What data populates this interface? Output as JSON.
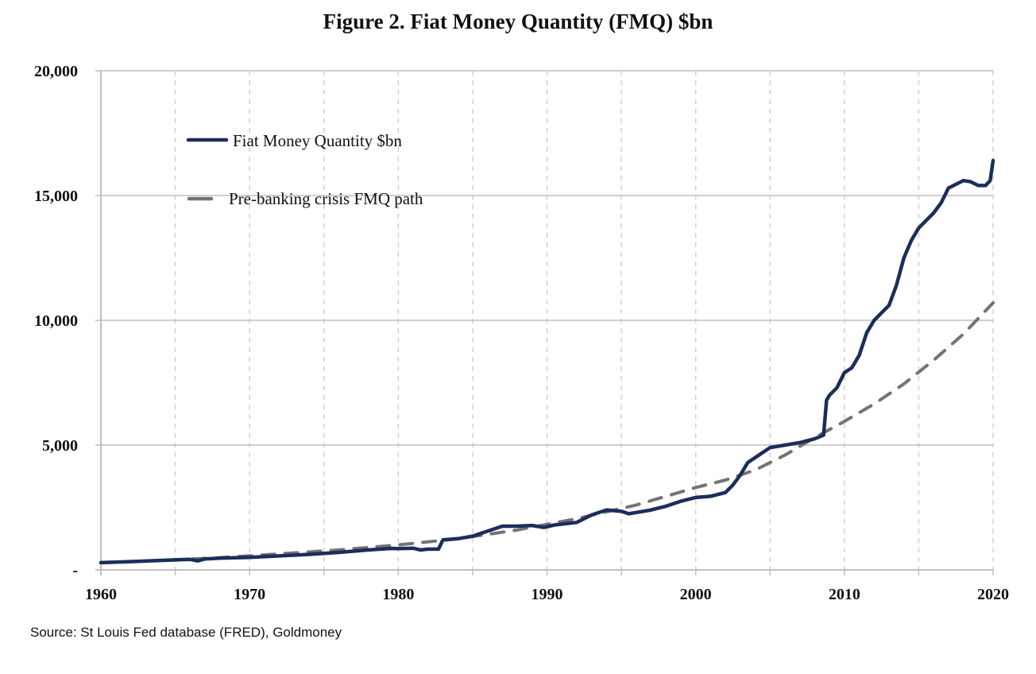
{
  "chart_data": {
    "type": "line",
    "title": "Figure 2. Fiat Money Quantity (FMQ)  $bn",
    "xlabel": "",
    "ylabel": "",
    "xlim": [
      1960,
      2020
    ],
    "ylim": [
      0,
      20000
    ],
    "x_ticks": [
      1960,
      1970,
      1980,
      1990,
      2000,
      2010,
      2020
    ],
    "x_tick_labels": [
      "1960",
      "1970",
      "1980",
      "1990",
      "2000",
      "2010",
      "2020"
    ],
    "x_minor_gridlines": [
      1965,
      1975,
      1985,
      1995,
      2005,
      2015
    ],
    "y_ticks": [
      0,
      5000,
      10000,
      15000,
      20000
    ],
    "y_tick_labels": [
      "-",
      "5,000",
      "10,000",
      "15,000",
      "20,000"
    ],
    "grid": true,
    "legend_position": "top-left",
    "source": "Source: St Louis Fed  database (FRED), Goldmoney",
    "series": [
      {
        "name": "Fiat Money Quantity $bn",
        "style": "solid",
        "color": "#1c2d5a",
        "x": [
          1960,
          1962,
          1964,
          1966,
          1966.5,
          1967,
          1968,
          1970,
          1972,
          1974,
          1976,
          1978,
          1979.5,
          1980,
          1981,
          1981.5,
          1982,
          1982.7,
          1983,
          1984,
          1985,
          1986,
          1987,
          1988,
          1989,
          1989.8,
          1990.5,
          1992,
          1993,
          1994,
          1995,
          1995.5,
          1996,
          1997,
          1998,
          1999,
          2000,
          2001,
          2002,
          2002.5,
          2003,
          2003.5,
          2004,
          2005,
          2006,
          2007,
          2008,
          2008.6,
          2008.8,
          2009,
          2009.5,
          2010,
          2010.5,
          2011,
          2011.5,
          2012,
          2012.5,
          2013,
          2013.5,
          2014,
          2014.5,
          2015,
          2015.5,
          2016,
          2016.5,
          2017,
          2017.5,
          2018,
          2018.5,
          2019,
          2019.5,
          2019.8,
          2020
        ],
        "values": [
          290,
          330,
          380,
          420,
          360,
          440,
          470,
          500,
          560,
          620,
          700,
          800,
          860,
          850,
          870,
          800,
          830,
          830,
          1200,
          1250,
          1350,
          1550,
          1750,
          1750,
          1780,
          1700,
          1800,
          1900,
          2200,
          2400,
          2350,
          2250,
          2300,
          2400,
          2550,
          2750,
          2900,
          2950,
          3100,
          3400,
          3800,
          4300,
          4500,
          4900,
          5000,
          5100,
          5250,
          5400,
          6800,
          7000,
          7300,
          7900,
          8100,
          8600,
          9500,
          10000,
          10300,
          10600,
          11400,
          12500,
          13200,
          13700,
          14000,
          14300,
          14700,
          15300,
          15450,
          15600,
          15550,
          15400,
          15400,
          15600,
          16400
        ]
      },
      {
        "name": "Pre-banking crisis FMQ path",
        "style": "dashed",
        "color": "#737373",
        "x": [
          1960,
          1964,
          1968,
          1972,
          1976,
          1980,
          1984,
          1988,
          1992,
          1996,
          2000,
          2002,
          2004,
          2006,
          2008,
          2010,
          2012,
          2014,
          2016,
          2018,
          2020
        ],
        "values": [
          290,
          380,
          490,
          640,
          800,
          1000,
          1250,
          1600,
          2050,
          2600,
          3300,
          3600,
          4000,
          4600,
          5300,
          5950,
          6650,
          7450,
          8400,
          9450,
          10700
        ]
      }
    ]
  }
}
